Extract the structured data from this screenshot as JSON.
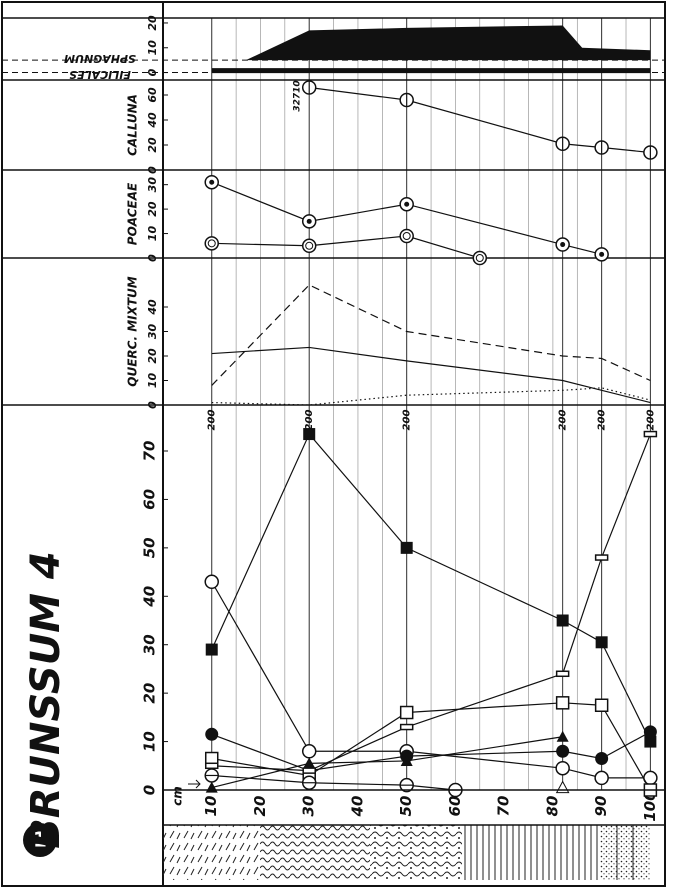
{
  "title": "BRUNSSUM 4",
  "figure_number": "1",
  "depth_axis": {
    "label": "cm",
    "xlim": [
      0,
      103
    ],
    "xticks": [
      10,
      20,
      30,
      40,
      50,
      60,
      70,
      80,
      90,
      100
    ],
    "xgrid": [
      10,
      15,
      20,
      25,
      30,
      35,
      40,
      45,
      50,
      55,
      60,
      65,
      70,
      75,
      80,
      85,
      90,
      95,
      100
    ]
  },
  "pollen_sums": [
    {
      "x": 10,
      "label": "200"
    },
    {
      "x": 30,
      "label": "200"
    },
    {
      "x": 50,
      "label": "200"
    },
    {
      "x": 82,
      "label": "200"
    },
    {
      "x": 90,
      "label": "200"
    },
    {
      "x": 100,
      "label": "200"
    }
  ],
  "chart_data": [
    {
      "type": "line",
      "ylim": [
        0,
        79.5
      ],
      "yticks": [
        0,
        10,
        20,
        30,
        40,
        50,
        60,
        70
      ],
      "color": "#111",
      "series": [
        {
          "marker": "filled-square",
          "x": [
            10,
            30,
            50,
            82,
            90,
            100
          ],
          "values": [
            29,
            73.5,
            50,
            35,
            30.5,
            10
          ]
        },
        {
          "marker": "open-circle",
          "x": [
            10,
            30,
            50,
            82,
            90,
            100
          ],
          "values": [
            43,
            8,
            8,
            4.5,
            2.5,
            2.5
          ]
        },
        {
          "marker": "filled-circle",
          "x": [
            10,
            30,
            50,
            82,
            90,
            100
          ],
          "values": [
            11.5,
            4,
            7,
            8,
            6.5,
            12
          ]
        },
        {
          "marker": "open-square",
          "x": [
            10,
            30,
            50,
            82,
            90,
            100
          ],
          "values": [
            6.5,
            3,
            16,
            18,
            17.5,
            0
          ]
        },
        {
          "marker": "open-bar",
          "x": [
            10,
            30,
            50,
            82,
            90,
            100
          ],
          "values": [
            5,
            4,
            13,
            24,
            48,
            73.5
          ]
        },
        {
          "marker": "filled-triangle",
          "x": [
            10,
            30,
            50,
            82
          ],
          "values": [
            0.5,
            5.5,
            6,
            11
          ]
        },
        {
          "marker": "open-triangle",
          "x": [
            82
          ],
          "values": [
            0.5
          ]
        },
        {
          "marker": "crossed-circle",
          "x": [
            10,
            30,
            50,
            60
          ],
          "values": [
            3,
            1.5,
            1,
            0
          ]
        }
      ]
    },
    {
      "type": "line",
      "label": "QUERC. MIXTUM",
      "ylim": [
        0,
        60
      ],
      "yticks": [
        0,
        10,
        20,
        30,
        40
      ],
      "color": "#111",
      "series": [
        {
          "style": "solid",
          "x": [
            10,
            30,
            50,
            82,
            90,
            100
          ],
          "values": [
            21,
            23.5,
            18,
            10,
            6,
            1
          ]
        },
        {
          "style": "dashed",
          "x": [
            10,
            30,
            50,
            82,
            90,
            100
          ],
          "values": [
            8,
            49,
            30,
            20,
            19,
            10
          ]
        },
        {
          "style": "dotted",
          "x": [
            10,
            30,
            50,
            82,
            90,
            100
          ],
          "values": [
            1,
            0,
            4,
            6,
            7,
            2
          ]
        }
      ]
    },
    {
      "type": "line",
      "label": "POACEAE",
      "ylim": [
        0,
        36
      ],
      "yticks": [
        0,
        10,
        20,
        30
      ],
      "color": "#111",
      "series": [
        {
          "marker": "dot-circle",
          "x": [
            10,
            30,
            50,
            82,
            90
          ],
          "values": [
            31,
            15,
            22,
            5.5,
            1.5
          ]
        },
        {
          "marker": "double-circle",
          "x": [
            10,
            30,
            50,
            65
          ],
          "values": [
            6,
            5,
            9,
            0
          ]
        }
      ]
    },
    {
      "type": "line",
      "label": "CALLUNA",
      "ylim": [
        0,
        72
      ],
      "yticks": [
        0,
        20,
        40,
        60
      ],
      "color": "#111",
      "annotation": {
        "text": "32710",
        "x": 30
      },
      "series": [
        {
          "marker": "barred-circle",
          "x": [
            30,
            50,
            82,
            90,
            100
          ],
          "values": [
            66,
            56,
            21,
            18,
            14
          ]
        }
      ]
    },
    {
      "type": "area",
      "ylim": [
        -3,
        22
      ],
      "yticks": [
        0,
        10,
        20
      ],
      "color": "#111",
      "reference_lines": [
        0,
        5
      ],
      "series": [
        {
          "name": "SPHAGNUM",
          "style": "area",
          "x": [
            17,
            30,
            50,
            82,
            86,
            100
          ],
          "values": [
            5,
            17,
            18,
            19,
            10,
            9
          ]
        },
        {
          "name": "FILICALES",
          "style": "bar-line",
          "x": [
            10,
            100
          ],
          "values": [
            0.8,
            0.8
          ]
        }
      ]
    }
  ]
}
